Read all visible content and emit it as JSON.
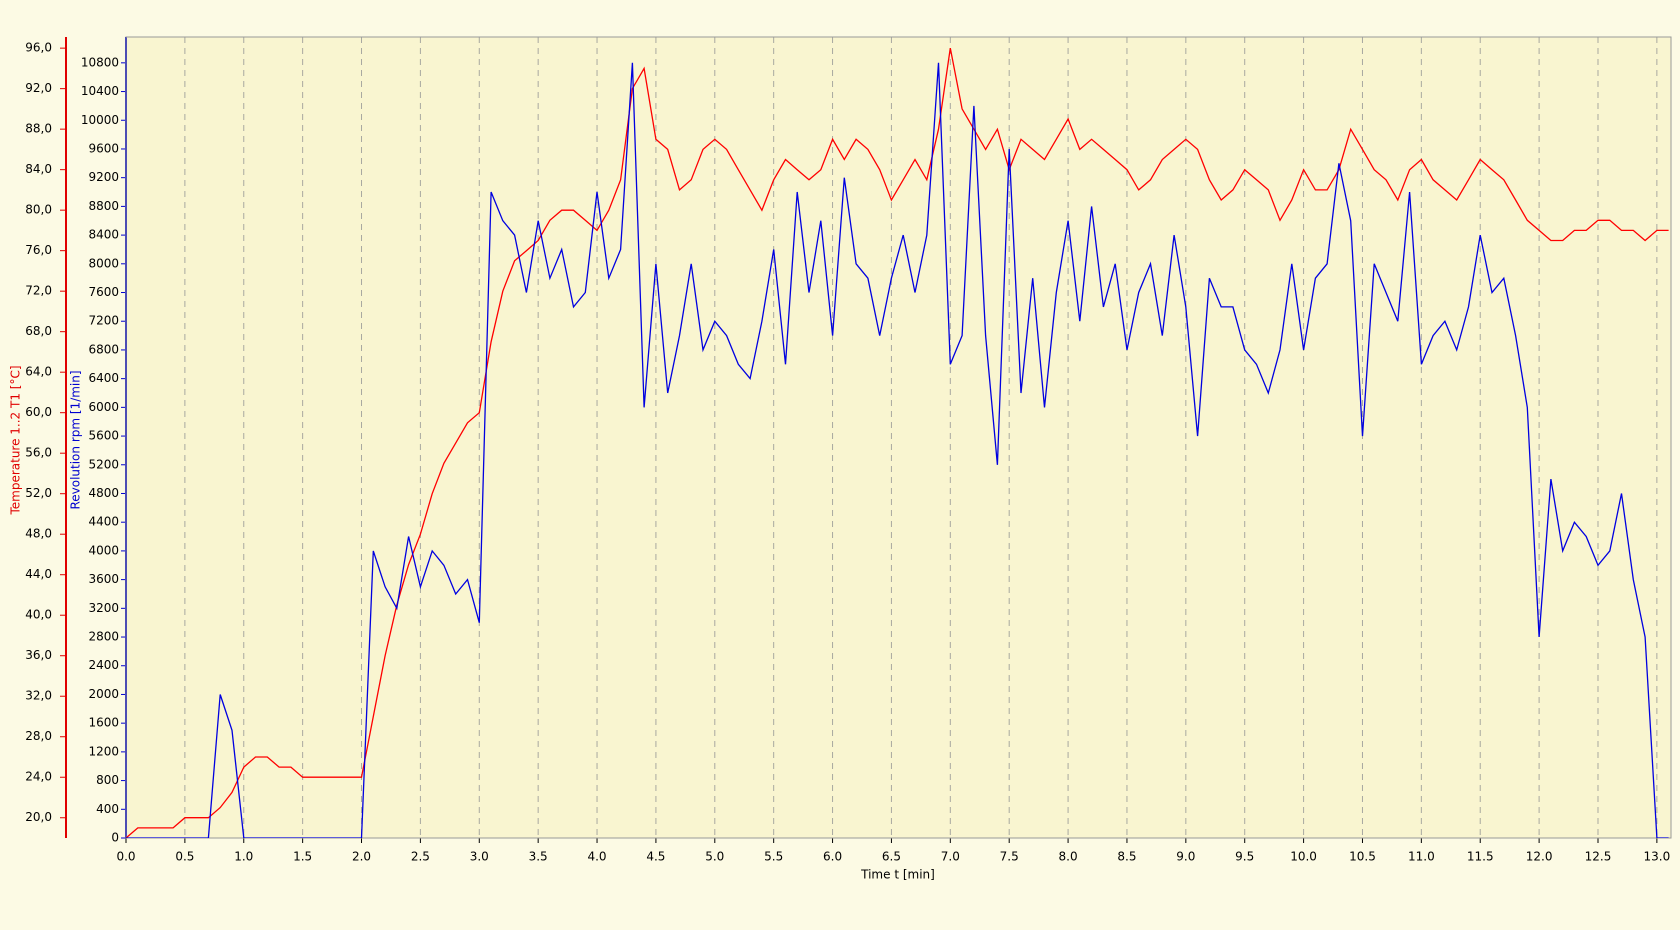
{
  "chart_data": {
    "type": "line",
    "x_label": "Time  t  [min]",
    "x": [
      0,
      0.1,
      0.2,
      0.3,
      0.4,
      0.5,
      0.6,
      0.7,
      0.8,
      0.9,
      1,
      1.1,
      1.2,
      1.3,
      1.4,
      1.5,
      1.6,
      1.7,
      1.8,
      1.9,
      2,
      2.1,
      2.2,
      2.3,
      2.4,
      2.5,
      2.6,
      2.7,
      2.8,
      2.9,
      3,
      3.1,
      3.2,
      3.3,
      3.4,
      3.5,
      3.6,
      3.7,
      3.8,
      3.9,
      4,
      4.1,
      4.2,
      4.3,
      4.4,
      4.5,
      4.6,
      4.7,
      4.8,
      4.9,
      5,
      5.1,
      5.2,
      5.3,
      5.4,
      5.5,
      5.6,
      5.7,
      5.8,
      5.9,
      6,
      6.1,
      6.2,
      6.3,
      6.4,
      6.5,
      6.6,
      6.7,
      6.8,
      6.9,
      7,
      7.1,
      7.2,
      7.3,
      7.4,
      7.5,
      7.6,
      7.7,
      7.8,
      7.9,
      8,
      8.1,
      8.2,
      8.3,
      8.4,
      8.5,
      8.6,
      8.7,
      8.8,
      8.9,
      9,
      9.1,
      9.2,
      9.3,
      9.4,
      9.5,
      9.6,
      9.7,
      9.8,
      9.9,
      10,
      10.1,
      10.2,
      10.3,
      10.4,
      10.5,
      10.6,
      10.7,
      10.8,
      10.9,
      11,
      11.1,
      11.2,
      11.3,
      11.4,
      11.5,
      11.6,
      11.7,
      11.8,
      11.9,
      12,
      12.1,
      12.2,
      12.3,
      12.4,
      12.5,
      12.6,
      12.7,
      12.8,
      12.9,
      13,
      13.1
    ],
    "series": [
      {
        "name": "Temperature 1..2  T1  [°C]",
        "color": "#ff0000",
        "axis": "y",
        "values": [
          18,
          19,
          19,
          19,
          19,
          20,
          20,
          20,
          21,
          22.5,
          25,
          26,
          26,
          25,
          25,
          24,
          24,
          24,
          24,
          24,
          24,
          30,
          36,
          41,
          45,
          48,
          52,
          55,
          57,
          59,
          60,
          67,
          72,
          75,
          76,
          77,
          79,
          80,
          80,
          79,
          78,
          80,
          83,
          92,
          94,
          87,
          86,
          82,
          83,
          86,
          87,
          86,
          84,
          82,
          80,
          83,
          85,
          84,
          83,
          84,
          87,
          85,
          87,
          86,
          84,
          81,
          83,
          85,
          83,
          88,
          96,
          90,
          88,
          86,
          88,
          84,
          87,
          86,
          85,
          87,
          89,
          86,
          87,
          86,
          85,
          84,
          82,
          83,
          85,
          86,
          87,
          86,
          83,
          81,
          82,
          84,
          83,
          82,
          79,
          81,
          84,
          82,
          82,
          84,
          88,
          86,
          84,
          83,
          81,
          84,
          85,
          83,
          82,
          81,
          83,
          85,
          84,
          83,
          81,
          79,
          78,
          77,
          77,
          78,
          78,
          79,
          79,
          78,
          78,
          77,
          78,
          78
        ]
      },
      {
        "name": "Revolution  rpm  [1/min]",
        "color": "#0000e0",
        "axis": "y2",
        "values": [
          0,
          0,
          0,
          0,
          0,
          0,
          0,
          0,
          2000,
          1500,
          0,
          0,
          0,
          0,
          0,
          0,
          0,
          0,
          0,
          0,
          0,
          4000,
          3500,
          3200,
          4200,
          3500,
          4000,
          3800,
          3400,
          3600,
          3000,
          9000,
          8600,
          8400,
          7600,
          8600,
          7800,
          8200,
          7400,
          7600,
          9000,
          7800,
          8200,
          10800,
          6000,
          8000,
          6200,
          7000,
          8000,
          6800,
          7200,
          7000,
          6600,
          6400,
          7200,
          8200,
          6600,
          9000,
          7600,
          8600,
          7000,
          9200,
          8000,
          7800,
          7000,
          7800,
          8400,
          7600,
          8400,
          10800,
          6600,
          7000,
          10200,
          7000,
          5200,
          9600,
          6200,
          7800,
          6000,
          7600,
          8600,
          7200,
          8800,
          7400,
          8000,
          6800,
          7600,
          8000,
          7000,
          8400,
          7400,
          5600,
          7800,
          7400,
          7400,
          6800,
          6600,
          6200,
          6800,
          8000,
          6800,
          7800,
          8000,
          9400,
          8600,
          5600,
          8000,
          7600,
          7200,
          9000,
          6600,
          7000,
          7200,
          6800,
          7400,
          8400,
          7600,
          7800,
          7000,
          6000,
          2800,
          5000,
          4000,
          4400,
          4200,
          3800,
          4000,
          4800,
          3600,
          2800,
          0,
          0
        ]
      }
    ],
    "xlim": [
      0,
      13.12
    ],
    "xticks": [
      {
        "value": 0,
        "label": "0.0"
      },
      0.5,
      {
        "value": 1,
        "label": "1.0"
      },
      1.5,
      {
        "value": 2,
        "label": "2.0"
      },
      2.5,
      {
        "value": 3,
        "label": "3.0"
      },
      3.5,
      {
        "value": 4,
        "label": "4.0"
      },
      4.5,
      {
        "value": 5,
        "label": "5.0"
      },
      5.5,
      {
        "value": 6,
        "label": "6.0"
      },
      6.5,
      {
        "value": 7,
        "label": "7.0"
      },
      7.5,
      {
        "value": 8,
        "label": "8.0"
      },
      8.5,
      {
        "value": 9,
        "label": "9.0"
      },
      9.5,
      {
        "value": 10,
        "label": "10.0"
      },
      10.5,
      {
        "value": 11,
        "label": "11.0"
      },
      11.5,
      {
        "value": 12,
        "label": "12.0"
      },
      12.5,
      {
        "value": 13,
        "label": "13.0"
      }
    ],
    "ylim": [
      18,
      97.1
    ],
    "yticks": [
      {
        "value": 20,
        "label": "20,0"
      },
      {
        "value": 24,
        "label": "24,0"
      },
      {
        "value": 28,
        "label": "28,0"
      },
      {
        "value": 32,
        "label": "32,0"
      },
      {
        "value": 36,
        "label": "36,0"
      },
      {
        "value": 40,
        "label": "40,0"
      },
      {
        "value": 44,
        "label": "44,0"
      },
      {
        "value": 48,
        "label": "48,0"
      },
      {
        "value": 52,
        "label": "52,0"
      },
      {
        "value": 56,
        "label": "56,0"
      },
      {
        "value": 60,
        "label": "60,0"
      },
      {
        "value": 64,
        "label": "64,0"
      },
      {
        "value": 68,
        "label": "68,0"
      },
      {
        "value": 72,
        "label": "72,0"
      },
      {
        "value": 76,
        "label": "76,0"
      },
      {
        "value": 80,
        "label": "80,0"
      },
      {
        "value": 84,
        "label": "84,0"
      },
      {
        "value": 88,
        "label": "88,0"
      },
      {
        "value": 92,
        "label": "92,0"
      },
      {
        "value": 96,
        "label": "96,0"
      }
    ],
    "y2lim": [
      0,
      11160
    ],
    "y2ticks": [
      0,
      400,
      800,
      1200,
      1600,
      2000,
      2400,
      2800,
      3200,
      3600,
      4000,
      4400,
      4800,
      5200,
      5600,
      6000,
      6400,
      6800,
      7200,
      7600,
      8000,
      8400,
      8800,
      9200,
      9600,
      10000,
      10400,
      10800
    ],
    "grid": "x"
  }
}
